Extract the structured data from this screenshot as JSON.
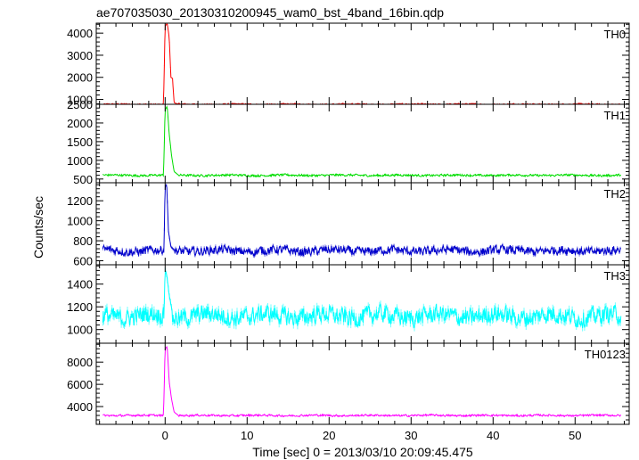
{
  "chart_data": {
    "type": "line",
    "title": "ae707035030_20130310200945_wam0_bst_4band_16bin.qdp",
    "xlabel": "Time [sec] 0 = 2013/03/10 20:09:45.475",
    "ylabel": "Counts/sec",
    "xlim": [
      -8.4,
      56.6
    ],
    "xticks": [
      0,
      10,
      20,
      30,
      40,
      50
    ],
    "grid": false,
    "shared_x": true,
    "panels": [
      {
        "name": "TH0",
        "color": "#ff0000",
        "ylim": [
          780,
          4450
        ],
        "yticks": [
          1000,
          2000,
          3000,
          4000
        ],
        "baseline": 780,
        "noise": 35,
        "peak": [
          [
            -0.2,
            780
          ],
          [
            0.0,
            4300
          ],
          [
            0.25,
            4450
          ],
          [
            0.5,
            3800
          ],
          [
            0.7,
            2000
          ],
          [
            0.9,
            1950
          ],
          [
            1.1,
            850
          ],
          [
            1.6,
            790
          ]
        ]
      },
      {
        "name": "TH1",
        "color": "#00dd00",
        "ylim": [
          400,
          2500
        ],
        "yticks": [
          500,
          1000,
          1500,
          2000,
          2500
        ],
        "baseline": 600,
        "noise": 30,
        "peak": [
          [
            -0.2,
            600
          ],
          [
            0.0,
            2350
          ],
          [
            0.25,
            2450
          ],
          [
            0.5,
            1700
          ],
          [
            0.8,
            1100
          ],
          [
            1.1,
            700
          ],
          [
            1.6,
            610
          ]
        ]
      },
      {
        "name": "TH2",
        "color": "#0000cc",
        "ylim": [
          560,
          1380
        ],
        "yticks": [
          600,
          800,
          1000,
          1200
        ],
        "baseline": 700,
        "noise": 45,
        "peak": [
          [
            -0.15,
            700
          ],
          [
            0.0,
            1340
          ],
          [
            0.2,
            1360
          ],
          [
            0.4,
            900
          ],
          [
            0.7,
            740
          ],
          [
            1.2,
            700
          ]
        ]
      },
      {
        "name": "TH3",
        "color": "#00ffff",
        "ylim": [
          880,
          1570
        ],
        "yticks": [
          1000,
          1200,
          1400
        ],
        "baseline": 1120,
        "noise": 80,
        "peak": [
          [
            -0.15,
            1120
          ],
          [
            0.0,
            1520
          ],
          [
            0.2,
            1480
          ],
          [
            0.5,
            1300
          ],
          [
            0.9,
            1150
          ]
        ]
      },
      {
        "name": "TH0123",
        "color": "#ff00ff",
        "ylim": [
          2400,
          9700
        ],
        "yticks": [
          4000,
          6000,
          8000
        ],
        "baseline": 3200,
        "noise": 90,
        "peak": [
          [
            -0.2,
            3200
          ],
          [
            0.0,
            9200
          ],
          [
            0.25,
            9400
          ],
          [
            0.5,
            6200
          ],
          [
            0.8,
            4600
          ],
          [
            1.1,
            3500
          ],
          [
            1.6,
            3220
          ]
        ]
      }
    ]
  }
}
